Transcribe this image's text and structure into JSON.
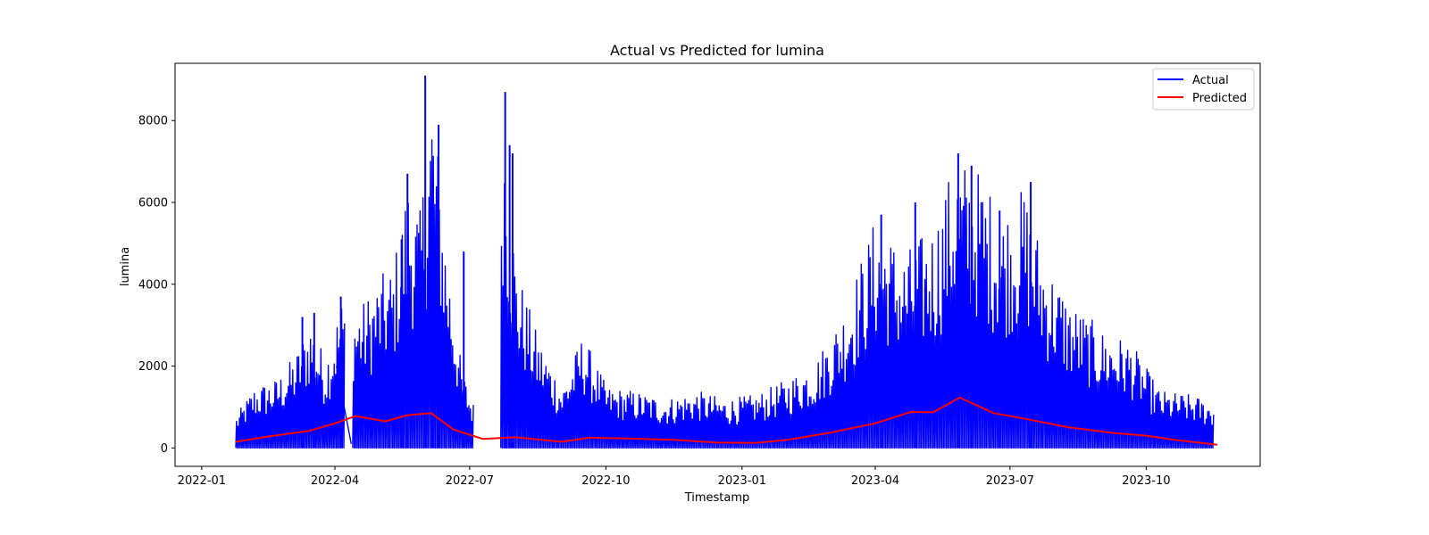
{
  "chart_data": {
    "type": "line",
    "title": "Actual vs Predicted for lumina",
    "xlabel": "Timestamp",
    "ylabel": "lumina",
    "x_axis": "date",
    "xlim": [
      "2021-12-14",
      "2023-12-17"
    ],
    "ylim": [
      -450,
      9400
    ],
    "x_ticks": [
      "2022-01-01",
      "2022-04-01",
      "2022-07-01",
      "2022-10-01",
      "2023-01-01",
      "2023-04-01",
      "2023-07-01",
      "2023-10-01"
    ],
    "x_tick_labels": [
      "2022-01",
      "2022-04",
      "2022-07",
      "2022-10",
      "2023-01",
      "2023-04",
      "2023-07",
      "2023-10"
    ],
    "y_ticks": [
      0,
      2000,
      4000,
      6000,
      8000
    ],
    "y_tick_labels": [
      "0",
      "2000",
      "4000",
      "6000",
      "8000"
    ],
    "grid": false,
    "legend_position": "top-right",
    "series": [
      {
        "name": "Actual",
        "color": "#0000ff",
        "style": "dense daily oscillation between 0 and the envelope peaks",
        "envelope": {
          "x": [
            "2022-01-24",
            "2022-02-05",
            "2022-02-20",
            "2022-03-05",
            "2022-03-15",
            "2022-03-25",
            "2022-04-05",
            "2022-04-12",
            "2022-04-20",
            "2022-05-01",
            "2022-05-10",
            "2022-05-20",
            "2022-05-28",
            "2022-06-05",
            "2022-06-15",
            "2022-06-25",
            "2022-07-05",
            "2022-07-15",
            "2022-07-23",
            "2022-08-01",
            "2022-08-15",
            "2022-09-01",
            "2022-09-15",
            "2022-10-01",
            "2022-10-20",
            "2022-11-10",
            "2022-12-01",
            "2022-12-20",
            "2023-01-10",
            "2023-02-01",
            "2023-02-20",
            "2023-03-10",
            "2023-04-01",
            "2023-04-20",
            "2023-05-10",
            "2023-05-25",
            "2023-06-10",
            "2023-06-25",
            "2023-07-10",
            "2023-07-25",
            "2023-08-10",
            "2023-09-01",
            "2023-09-20",
            "2023-10-10",
            "2023-11-01",
            "2023-11-15"
          ],
          "y": [
            800,
            1500,
            1700,
            2300,
            3200,
            2200,
            3700,
            3500,
            3600,
            4200,
            4500,
            6700,
            5800,
            9100,
            5000,
            2000,
            900,
            700,
            8700,
            4500,
            2800,
            1500,
            2800,
            1500,
            1400,
            1200,
            1400,
            1200,
            1300,
            1700,
            2200,
            3400,
            5700,
            4800,
            5500,
            7200,
            6800,
            5800,
            6400,
            4600,
            3600,
            2900,
            2600,
            1400,
            1300,
            1100
          ]
        },
        "spikes": [
          {
            "x": "2022-03-10",
            "y": 3200
          },
          {
            "x": "2022-03-18",
            "y": 3300
          },
          {
            "x": "2022-04-05",
            "y": 3700
          },
          {
            "x": "2022-05-16",
            "y": 5100
          },
          {
            "x": "2022-05-20",
            "y": 6700
          },
          {
            "x": "2022-06-01",
            "y": 9100
          },
          {
            "x": "2022-06-06",
            "y": 5800
          },
          {
            "x": "2022-06-10",
            "y": 7900
          },
          {
            "x": "2022-06-27",
            "y": 4800
          },
          {
            "x": "2022-07-25",
            "y": 8700
          },
          {
            "x": "2022-07-28",
            "y": 7400
          },
          {
            "x": "2022-07-30",
            "y": 7200
          },
          {
            "x": "2023-04-05",
            "y": 5700
          },
          {
            "x": "2023-04-28",
            "y": 6000
          },
          {
            "x": "2023-05-27",
            "y": 7200
          },
          {
            "x": "2023-06-05",
            "y": 6900
          },
          {
            "x": "2023-06-24",
            "y": 5800
          },
          {
            "x": "2023-07-15",
            "y": 6500
          }
        ],
        "gaps": [
          [
            "2022-04-08",
            "2022-04-12"
          ],
          [
            "2022-07-04",
            "2022-07-21"
          ]
        ]
      },
      {
        "name": "Predicted",
        "color": "#ff0000",
        "x": [
          "2022-01-24",
          "2022-02-15",
          "2022-03-15",
          "2022-04-01",
          "2022-04-15",
          "2022-05-05",
          "2022-05-20",
          "2022-06-05",
          "2022-06-20",
          "2022-07-10",
          "2022-08-01",
          "2022-09-01",
          "2022-09-20",
          "2022-10-15",
          "2022-11-15",
          "2022-12-15",
          "2023-01-10",
          "2023-02-01",
          "2023-03-01",
          "2023-04-01",
          "2023-04-25",
          "2023-05-10",
          "2023-05-28",
          "2023-06-20",
          "2023-07-10",
          "2023-08-10",
          "2023-09-10",
          "2023-10-01",
          "2023-10-20",
          "2023-11-18"
        ],
        "y": [
          150,
          280,
          420,
          600,
          780,
          650,
          800,
          850,
          450,
          220,
          260,
          150,
          250,
          230,
          200,
          130,
          120,
          200,
          370,
          600,
          880,
          870,
          1230,
          850,
          720,
          500,
          360,
          300,
          200,
          80
        ]
      }
    ]
  }
}
